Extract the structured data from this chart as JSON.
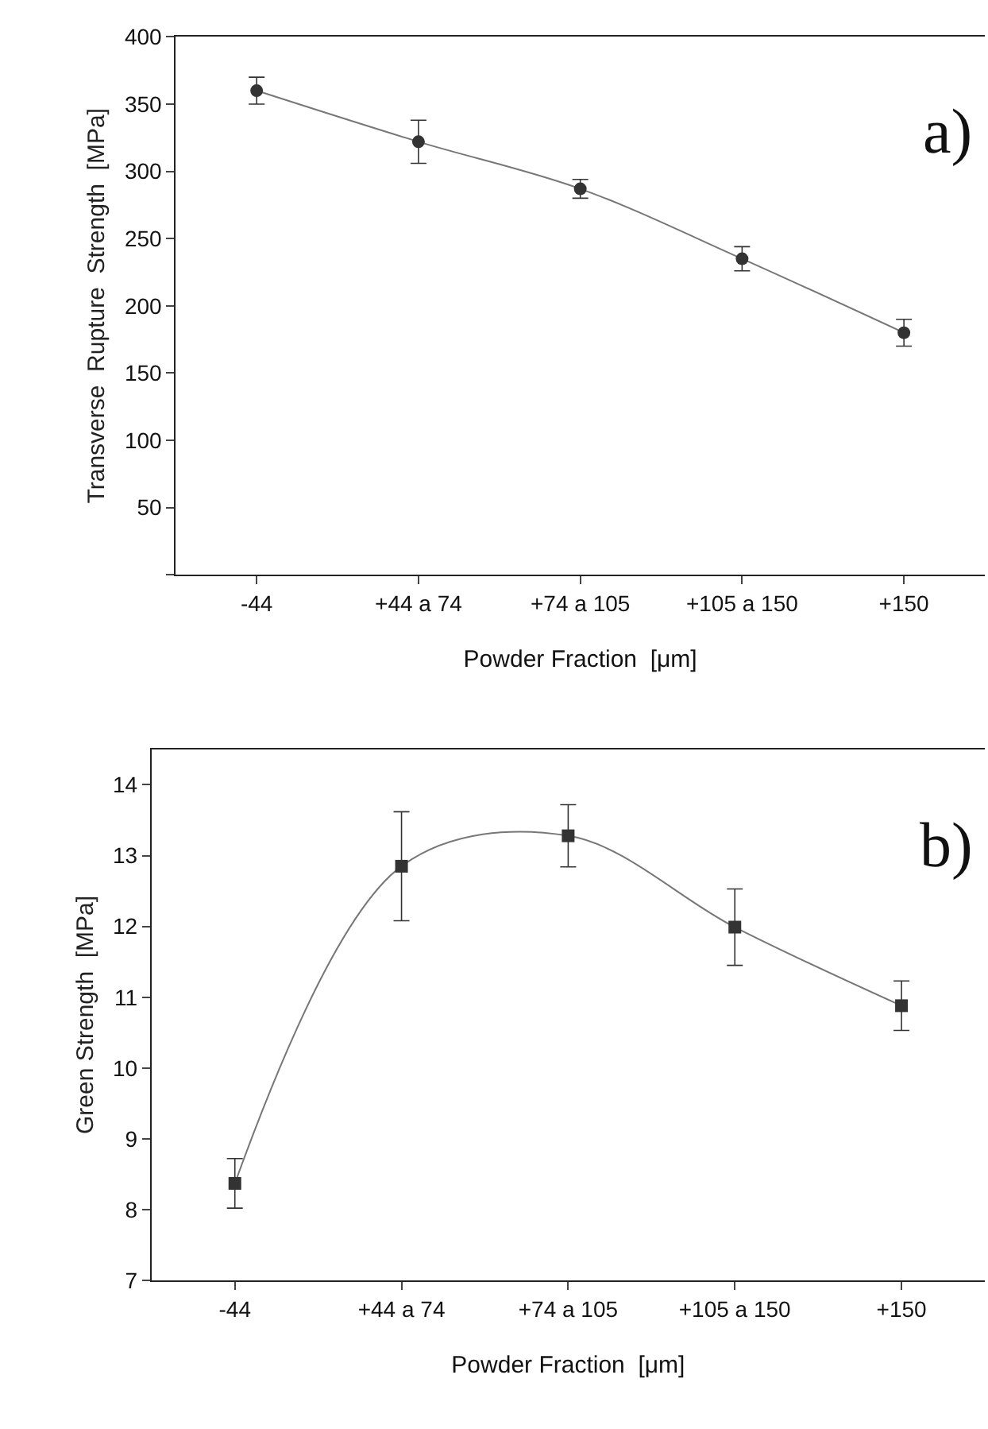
{
  "chart_data": [
    {
      "type": "line",
      "categories": [
        "-44",
        "+44 a 74",
        "+74 a 105",
        "+105 a 150",
        "+150"
      ],
      "xlabel": "Powder Fraction  [μm]",
      "ylabel": "Transverse  Rupture  Strength  [MPa]",
      "ylim": [
        0,
        400
      ],
      "yticks": [
        {
          "value": 0,
          "label": null
        },
        50,
        100,
        150,
        200,
        250,
        300,
        350,
        400
      ],
      "marker": "circle",
      "line_style": "solid",
      "annotations": [
        "a)"
      ],
      "series": [
        {
          "color": "#333333",
          "values": [
            360,
            322,
            287,
            235,
            180
          ],
          "errors": [
            10,
            16,
            7,
            9,
            10
          ]
        }
      ]
    },
    {
      "type": "line",
      "categories": [
        "-44",
        "+44 a 74",
        "+74 a 105",
        "+105 a 150",
        "+150"
      ],
      "xlabel": "Powder Fraction  [μm]",
      "ylabel": "Green Strength  [MPa]",
      "ylim": [
        7,
        14.5
      ],
      "yticks": [
        7,
        8,
        9,
        10,
        11,
        12,
        13,
        14
      ],
      "marker": "square",
      "line_style": "solid",
      "annotations": [
        "b)"
      ],
      "series": [
        {
          "color": "#333333",
          "values": [
            8.37,
            12.85,
            13.28,
            11.99,
            10.88
          ],
          "errors": [
            0.35,
            0.77,
            0.44,
            0.54,
            0.35
          ]
        }
      ]
    }
  ]
}
